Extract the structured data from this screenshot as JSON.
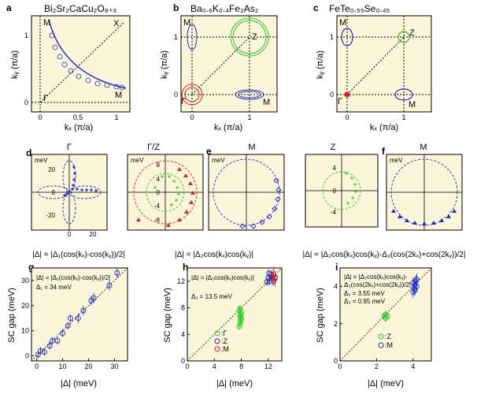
{
  "panel_letters": {
    "a": "a",
    "b": "b",
    "c": "c",
    "d": "d",
    "e": "e",
    "f": "f",
    "g": "g",
    "h": "h",
    "i": "i"
  },
  "titles": {
    "a": "Bi₂Sr₂CaCu₂O₈₊ₓ",
    "b": "Ba₀.₆K₀.₄Fe₂As₂",
    "c": "FeTe₀.₅₅Se₀.₄₅"
  },
  "fs_axes": {
    "xlabel": "kₓ (π/a)",
    "ylabel": "kᵧ (π/a)",
    "xticks": [
      "0",
      "0.5",
      "1"
    ],
    "xticks_bc": [
      "0",
      "1"
    ],
    "yticks": [
      "0",
      "1"
    ]
  },
  "symmetry_points": {
    "M": "M",
    "X": "X",
    "Gamma": "Γ",
    "Z": "Z"
  },
  "polar_titles": {
    "d": "Γ",
    "d2": "Γ/Z",
    "e": "M",
    "f1": "Z",
    "f2": "M"
  },
  "polar_units": "meV",
  "polar_ticks": {
    "d": [
      "20",
      "0",
      "-20",
      "0",
      "20"
    ],
    "d2": [
      "8",
      "4",
      "0",
      "-4",
      "-8"
    ],
    "f": [
      "4",
      "0",
      "-4"
    ]
  },
  "gap_formulas": {
    "a": "|Δ| = |Δ₁(cos(kₓ)-cos(kᵧ))/2|",
    "b": "|Δ| = |Δ₂cos(kₓ)cos(kᵧ)|",
    "c": "|Δ| = |Δ₂cos(kₓ)cos(kᵧ)-Δ₃(cos(2kₓ)+cos(2kᵧ))/2|"
  },
  "scatter_axes": {
    "xlabel": "|Δ| (meV)",
    "ylabel": "SC gap (meV)"
  },
  "annotations": {
    "g_formula": "|Δ| = |Δ₁(cos(kₓ)-cos(kᵧ))/2|",
    "g_param": "Δ₁ = 34 meV",
    "h_formula": "|Δ| = |Δ₂cos(kₓ)cos(kᵧ)|",
    "h_param": "Δ₂ = 13.5 meV",
    "i_formula1": "|Δ| = |Δ₂cos(kₓ)cos(kᵧ)-",
    "i_formula2": "Δ₃(cos(2kₓ)+cos(2kᵧ))/2|",
    "i_param1": "Δ₂ = 3.55 meV",
    "i_param2": "Δ₃ = 0.95 meV"
  },
  "legend": {
    "h": [
      {
        "symbol": "circle",
        "color": "#22cc22",
        "label": ":Γ"
      },
      {
        "symbol": "circle",
        "color": "#1a2ccc",
        "label": ":Z"
      },
      {
        "symbol": "circle",
        "color": "#dd2222",
        "label": ":M"
      }
    ],
    "i": [
      {
        "symbol": "circle",
        "color": "#22cc22",
        "label": ":Z"
      },
      {
        "symbol": "circle",
        "color": "#1a2ccc",
        "label": ":M"
      }
    ]
  },
  "colors": {
    "panel_bg": "#fbf6d9",
    "blue": "#1a2ccc",
    "green": "#22cc22",
    "red": "#dd2222",
    "black": "#000000"
  },
  "chart_data": [
    {
      "type": "scatter",
      "panel": "g",
      "xlabel": "|Δ| (meV)",
      "ylabel": "SC gap (meV)",
      "xlim": [
        -2,
        35
      ],
      "ylim": [
        -2,
        35
      ],
      "xticks": [
        0,
        10,
        20,
        30
      ],
      "yticks": [
        0,
        10,
        20,
        30
      ],
      "diagonal": true,
      "series": [
        {
          "color": "#1a2ccc",
          "x": [
            0.5,
            1.5,
            3,
            5,
            6,
            8,
            10,
            12,
            13,
            16,
            18,
            21,
            22,
            28,
            31
          ],
          "y": [
            0.5,
            2,
            1.5,
            4,
            6,
            6,
            9,
            12,
            15,
            15,
            18,
            22,
            23,
            28,
            33
          ],
          "err": [
            1.5,
            1.5,
            1.5,
            1.5,
            1.5,
            1.5,
            1.5,
            1.5,
            1.5,
            2,
            2,
            2,
            2,
            2,
            2
          ]
        }
      ]
    },
    {
      "type": "scatter",
      "panel": "h",
      "xlabel": "|Δ| (meV)",
      "ylabel": "SC gap (meV)",
      "xlim": [
        0,
        14
      ],
      "ylim": [
        0,
        14
      ],
      "xticks": [
        0,
        4,
        8,
        12
      ],
      "yticks": [
        0,
        4,
        8,
        12
      ],
      "diagonal": true,
      "series": [
        {
          "name": "Γ",
          "color": "#22cc22",
          "x": [
            7.7,
            7.8,
            7.9,
            8.0,
            7.8,
            7.9,
            8.0,
            7.7,
            7.8,
            7.9
          ],
          "y": [
            5.2,
            5.6,
            6.0,
            6.3,
            6.7,
            7.0,
            7.3,
            7.6,
            7.9,
            6.5
          ],
          "err": [
            0.5,
            0.5,
            0.5,
            0.5,
            0.5,
            0.5,
            0.5,
            0.5,
            0.5,
            0.5
          ]
        },
        {
          "name": "Z",
          "color": "#1a2ccc",
          "x": [
            11.8,
            12.0,
            12.2,
            12.4,
            12.6,
            12.8,
            13.0,
            12.1,
            12.5
          ],
          "y": [
            11.9,
            12.5,
            12.0,
            13.0,
            12.4,
            12.0,
            12.6,
            13.2,
            12.7
          ],
          "err": [
            0.6,
            0.6,
            0.6,
            0.6,
            0.6,
            0.6,
            0.6,
            0.6,
            0.6
          ]
        },
        {
          "name": "M",
          "color": "#dd2222",
          "x": [
            12.6,
            12.8,
            13.0
          ],
          "y": [
            12.5,
            13.0,
            12.4
          ],
          "err": [
            1.2,
            1.2,
            1.2
          ]
        }
      ]
    },
    {
      "type": "scatter",
      "panel": "i",
      "xlabel": "|Δ| (meV)",
      "ylabel": "SC gap (meV)",
      "xlim": [
        0,
        5
      ],
      "ylim": [
        0,
        5
      ],
      "xticks": [
        0,
        2,
        4
      ],
      "yticks": [
        0,
        2,
        4
      ],
      "diagonal": true,
      "series": [
        {
          "name": "Z",
          "color": "#22cc22",
          "x": [
            2.4,
            2.5,
            2.6,
            2.5
          ],
          "y": [
            2.4,
            2.5,
            2.4,
            2.3
          ],
          "err": [
            0.2,
            0.2,
            0.2,
            0.2
          ]
        },
        {
          "name": "M",
          "color": "#1a2ccc",
          "x": [
            4.0,
            4.05,
            4.1,
            4.15,
            4.2,
            4.0,
            4.1,
            4.2
          ],
          "y": [
            3.7,
            3.9,
            4.1,
            4.3,
            4.0,
            4.2,
            3.8,
            4.4
          ],
          "err": [
            0.3,
            0.3,
            0.3,
            0.3,
            0.3,
            0.3,
            0.3,
            0.3
          ]
        }
      ]
    }
  ]
}
